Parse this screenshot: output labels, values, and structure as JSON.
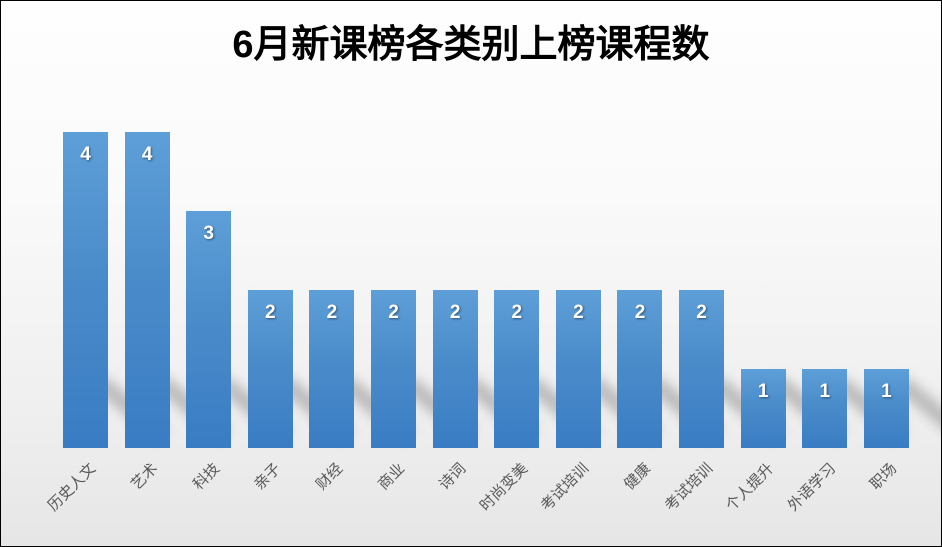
{
  "chart_data": {
    "type": "bar",
    "title": "6月新课榜各类别上榜课程数",
    "categories": [
      "历史人文",
      "艺术",
      "科技",
      "亲子",
      "财经",
      "商业",
      "诗词",
      "时尚变美",
      "考试培训",
      "健康",
      "考试培训",
      "个人提升",
      "外语学习",
      "职场"
    ],
    "values": [
      4,
      4,
      3,
      2,
      2,
      2,
      2,
      2,
      2,
      2,
      2,
      1,
      1,
      1
    ],
    "xlabel": "",
    "ylabel": "",
    "ylim": [
      0,
      4
    ],
    "grid": false,
    "legend": false,
    "data_labels": "inside-end",
    "axis_line": false,
    "colors": {
      "bar_top": "#5e9fd8",
      "bar_bottom": "#3a7cc3",
      "value_label": "#ffffff",
      "category_label": "#595959",
      "title": "#000000",
      "background_top": "#fefefe",
      "background_bottom": "#e6e6e6",
      "border": "#000000"
    }
  }
}
